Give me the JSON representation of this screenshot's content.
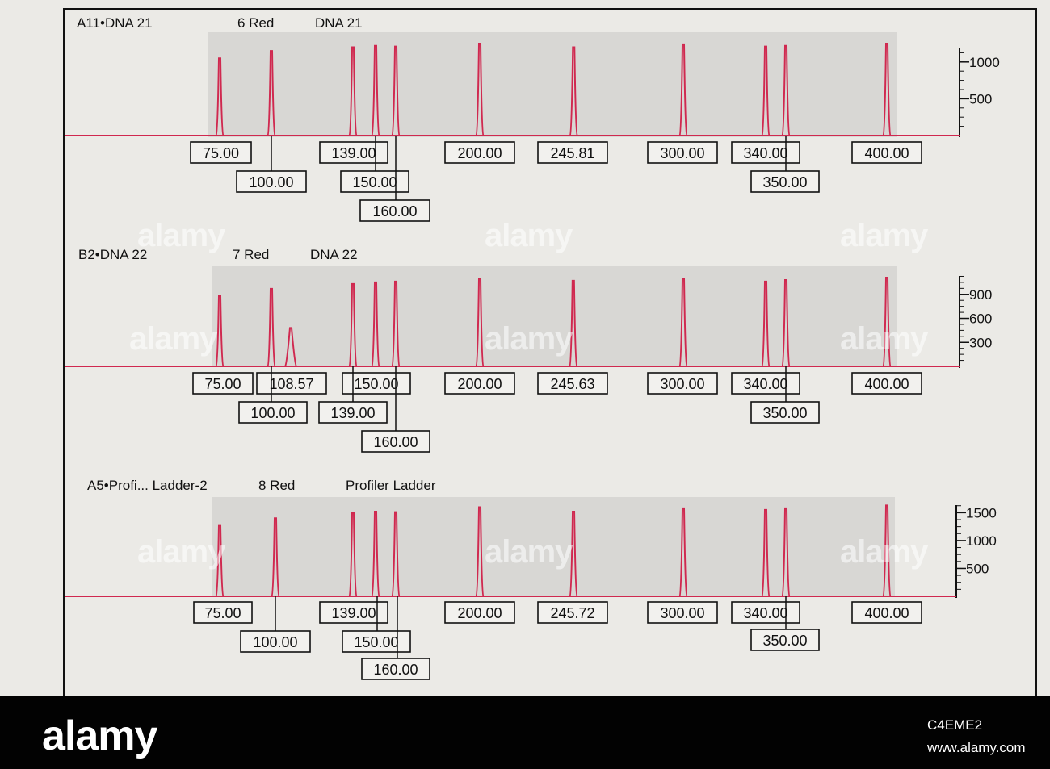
{
  "watermark": "alamy",
  "footer": {
    "logo": "alamy",
    "image_id": "C4EME2",
    "url": "www.alamy.com"
  },
  "colors": {
    "trace": "#d0284f",
    "panel_shade": "#d8d7d4",
    "paper": "#ebeae6",
    "footer_bg": "#020202"
  },
  "chart_data": [
    {
      "type": "line",
      "sample": "A11•DNA 21",
      "dye": "6 Red",
      "label": "DNA 21",
      "x_unit": "size",
      "y_ticks": [
        500,
        1000
      ],
      "y_max": 1250,
      "peaks": [
        {
          "size": 75.0,
          "height": 1050
        },
        {
          "size": 100.0,
          "height": 1150
        },
        {
          "size": 139.0,
          "height": 1200
        },
        {
          "size": 150.0,
          "height": 1220
        },
        {
          "size": 160.0,
          "height": 1210
        },
        {
          "size": 200.0,
          "height": 1250
        },
        {
          "size": 245.81,
          "height": 1200
        },
        {
          "size": 300.0,
          "height": 1240
        },
        {
          "size": 340.0,
          "height": 1210
        },
        {
          "size": 350.0,
          "height": 1220
        },
        {
          "size": 400.0,
          "height": 1250
        }
      ],
      "peak_labels": [
        "75.00",
        "100.00",
        "139.00",
        "150.00",
        "160.00",
        "200.00",
        "245.81",
        "300.00",
        "340.00",
        "350.00",
        "400.00"
      ]
    },
    {
      "type": "line",
      "sample": "B2•DNA 22",
      "dye": "7 Red",
      "label": "DNA 22",
      "x_unit": "size",
      "y_ticks": [
        300,
        600,
        900
      ],
      "y_max": 1150,
      "peaks": [
        {
          "size": 75.0,
          "height": 880
        },
        {
          "size": 100.0,
          "height": 970
        },
        {
          "size": 108.57,
          "height": 480
        },
        {
          "size": 139.0,
          "height": 1030
        },
        {
          "size": 150.0,
          "height": 1050
        },
        {
          "size": 160.0,
          "height": 1060
        },
        {
          "size": 200.0,
          "height": 1100
        },
        {
          "size": 245.63,
          "height": 1070
        },
        {
          "size": 300.0,
          "height": 1100
        },
        {
          "size": 340.0,
          "height": 1060
        },
        {
          "size": 350.0,
          "height": 1080
        },
        {
          "size": 400.0,
          "height": 1110
        }
      ],
      "peak_labels": [
        "75.00",
        "108.57",
        "150.00",
        "200.00",
        "245.63",
        "300.00",
        "340.00",
        "400.00",
        "100.00",
        "139.00",
        "350.00",
        "160.00"
      ]
    },
    {
      "type": "line",
      "sample": "A5•Profi... Ladder-2",
      "dye": "8 Red",
      "label": "Profiler Ladder",
      "x_unit": "size",
      "y_ticks": [
        500,
        1000,
        1500
      ],
      "y_max": 1650,
      "peaks": [
        {
          "size": 75.0,
          "height": 1280
        },
        {
          "size": 100.0,
          "height": 1400
        },
        {
          "size": 139.0,
          "height": 1500
        },
        {
          "size": 150.0,
          "height": 1520
        },
        {
          "size": 160.0,
          "height": 1510
        },
        {
          "size": 200.0,
          "height": 1600
        },
        {
          "size": 245.72,
          "height": 1520
        },
        {
          "size": 300.0,
          "height": 1580
        },
        {
          "size": 340.0,
          "height": 1550
        },
        {
          "size": 350.0,
          "height": 1580
        },
        {
          "size": 400.0,
          "height": 1630
        }
      ],
      "peak_labels": [
        "75.00",
        "100.00",
        "139.00",
        "150.00",
        "160.00",
        "200.00",
        "245.72",
        "300.00",
        "340.00",
        "350.00",
        "400.00"
      ]
    }
  ]
}
